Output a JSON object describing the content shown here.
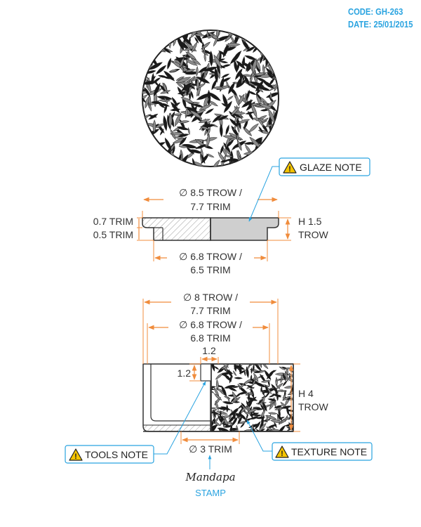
{
  "header": {
    "code": "CODE: GH-263",
    "date": "DATE: 25/01/2015"
  },
  "colors": {
    "dimension": "#f08c3c",
    "callout": "#29a3e0",
    "outline": "#333333",
    "glaze_fill": "#cfcfcf",
    "warning": "#f5c400"
  },
  "top_view": {
    "texture": "speckled-texture"
  },
  "lid": {
    "outer_diameter": {
      "line1": "∅ 8.5 TROW /",
      "line2": "7.7 TRIM"
    },
    "rim_thickness": {
      "trim": "0.7 TRIM",
      "trim2": "0.5 TRIM"
    },
    "height": {
      "line1": "H 1.5",
      "line2": "TROW"
    },
    "inner_diameter": {
      "line1": "∅ 6.8 TROW /",
      "line2": "6.5 TRIM"
    },
    "glaze_note": "GLAZE NOTE"
  },
  "cup": {
    "outer_diameter": {
      "line1": "∅ 8 TROW /",
      "line2": "7.7 TRIM"
    },
    "inner_diameter": {
      "line1": "∅ 6.8 TROW /",
      "line2": "6.8 TRIM"
    },
    "wall_width": "1.2",
    "wall_depth": "1.2",
    "height": {
      "line1": "H 4",
      "line2": "TROW"
    },
    "base_diameter": "∅ 3 TRIM",
    "tools_note": "TOOLS NOTE",
    "texture_note": "TEXTURE NOTE"
  },
  "stamp": {
    "logo": "Mandapa",
    "label": "STAMP"
  }
}
